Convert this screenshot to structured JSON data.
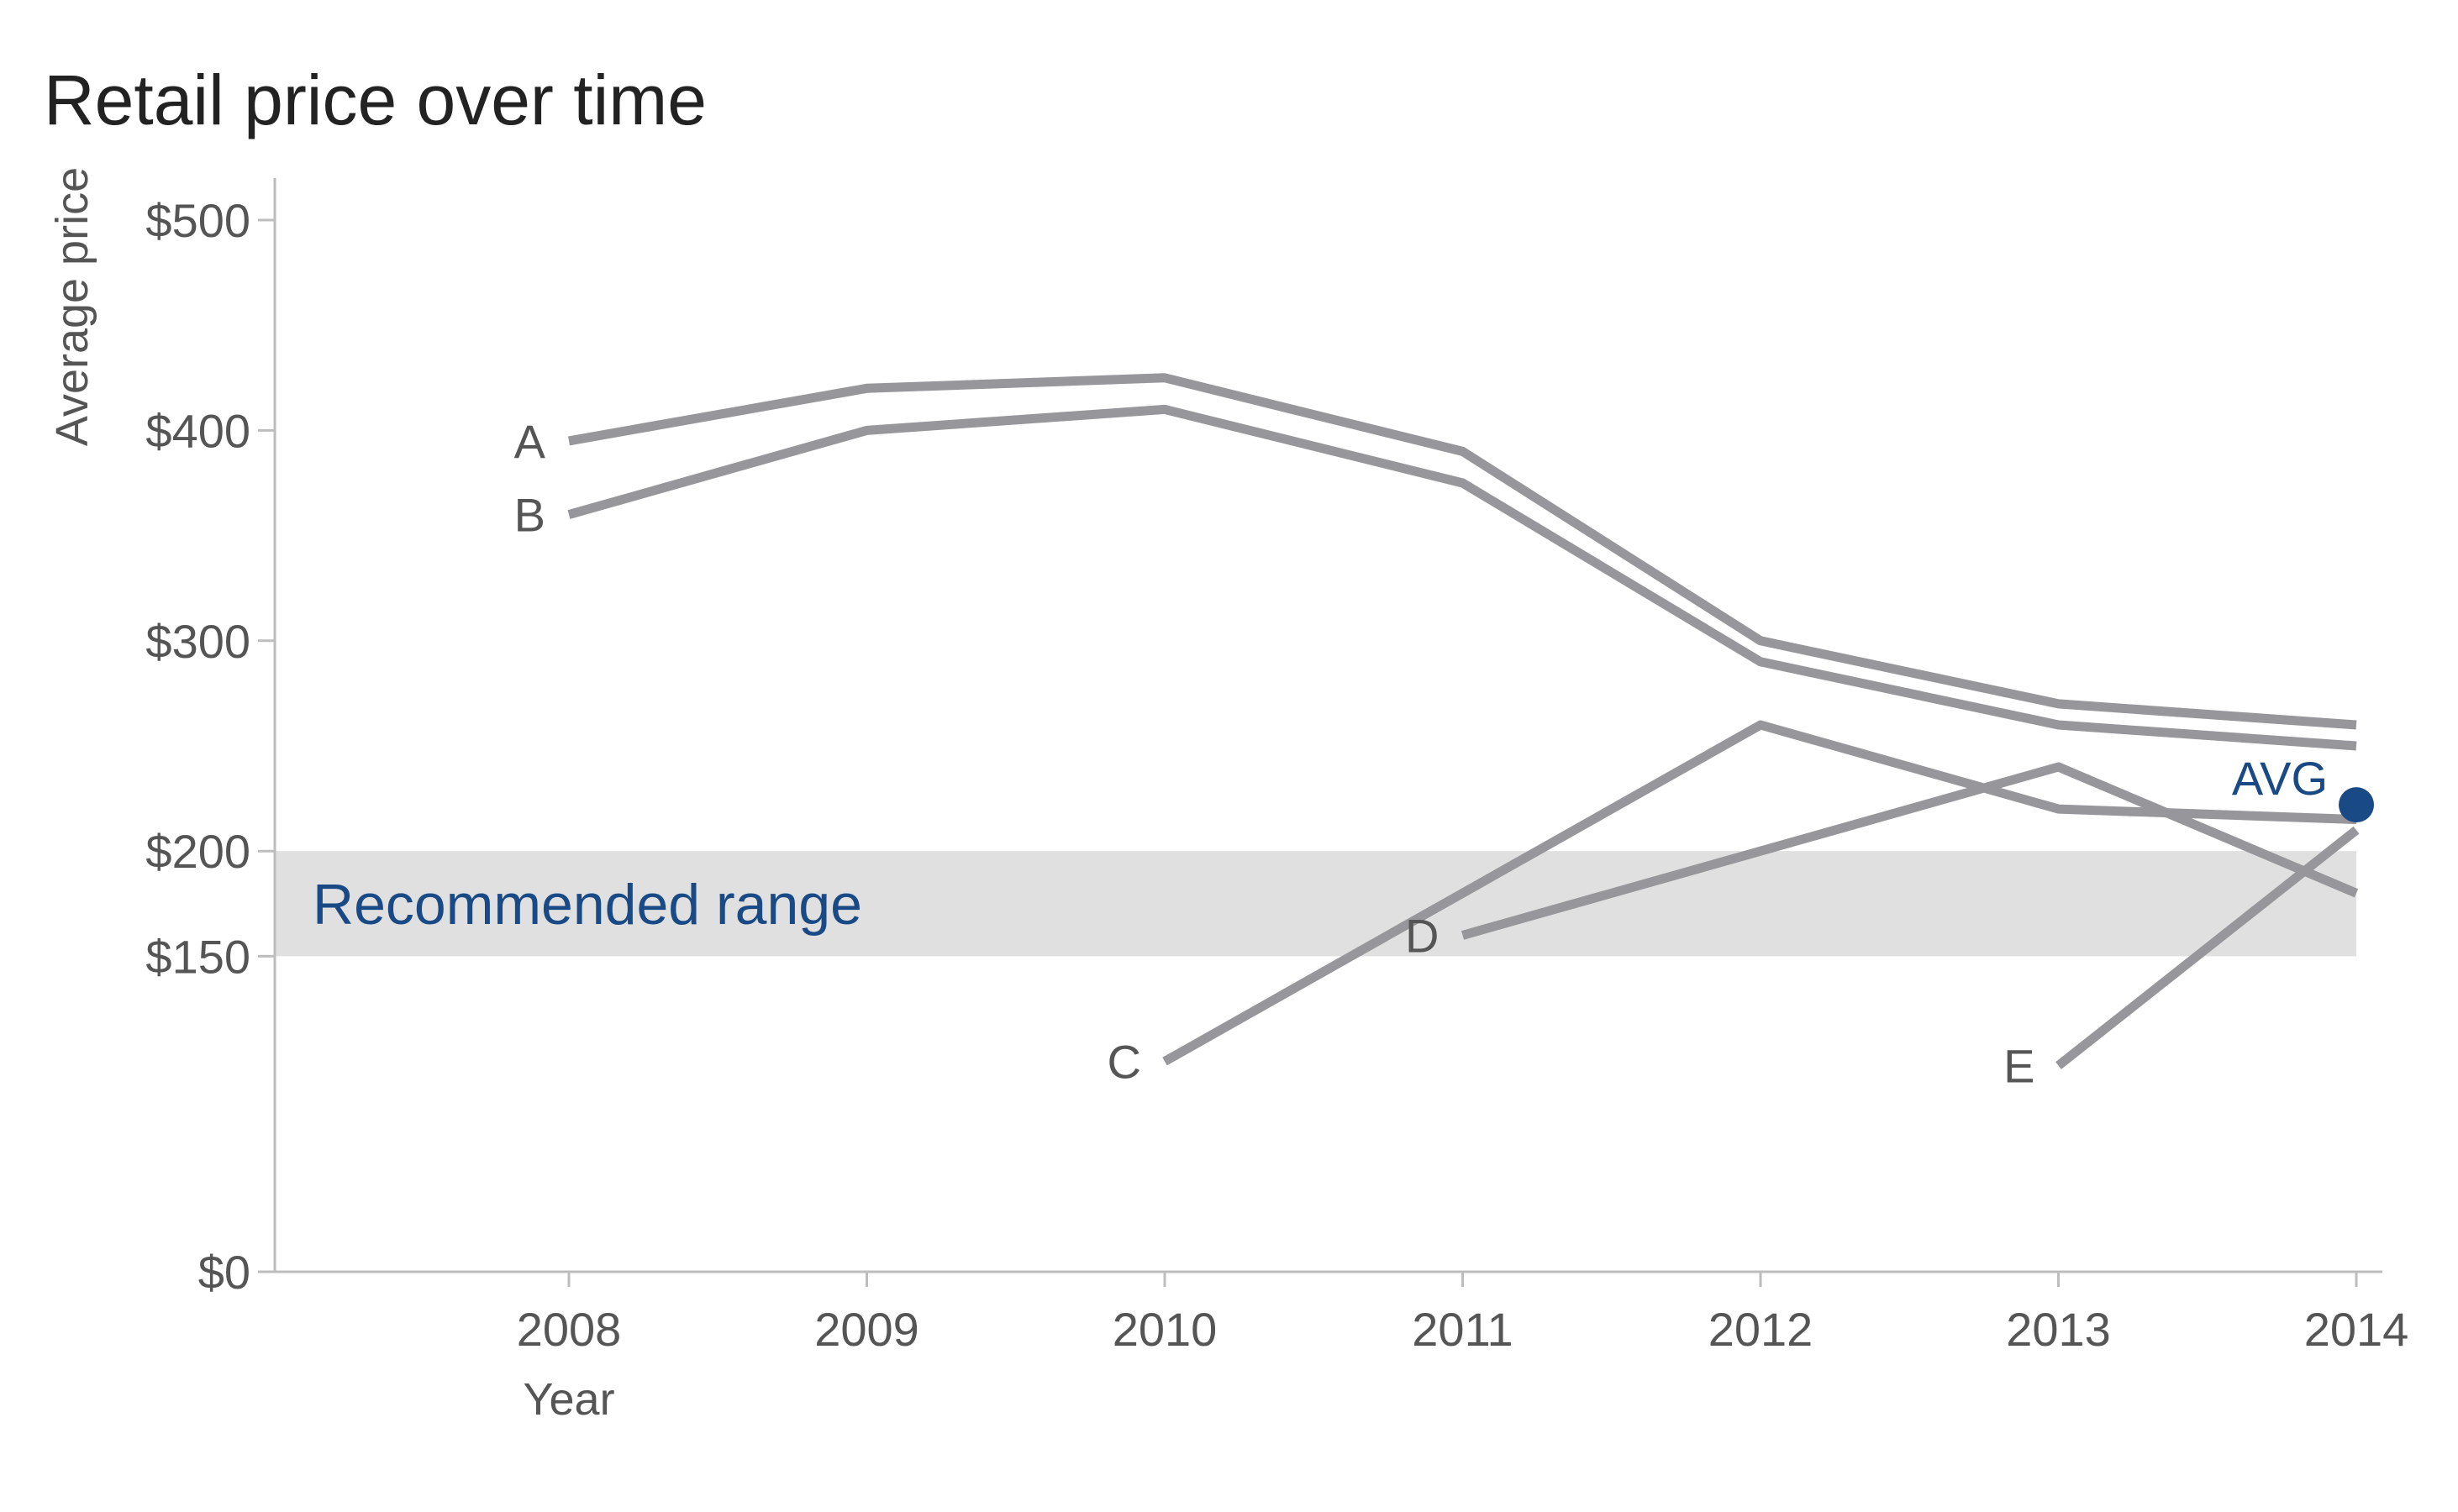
{
  "chart_data": {
    "type": "line",
    "title": "Retail price over time",
    "xlabel": "Year",
    "ylabel": "Average price",
    "x": [
      "2008",
      "2009",
      "2010",
      "2011",
      "2012",
      "2013",
      "2014"
    ],
    "y_ticks": [
      {
        "value": 0,
        "label": "$0"
      },
      {
        "value": 150,
        "label": "$150"
      },
      {
        "value": 200,
        "label": "$200"
      },
      {
        "value": 300,
        "label": "$300"
      },
      {
        "value": 400,
        "label": "$400"
      },
      {
        "value": 500,
        "label": "$500"
      }
    ],
    "ylim": [
      0,
      520
    ],
    "grid": false,
    "recommended_range": {
      "label": "Recommended range",
      "from": 150,
      "to": 200,
      "color": "#e0e0e0"
    },
    "series_color": "#97979b",
    "accent_color": "#1a4a85",
    "series": [
      {
        "name": "A",
        "values": [
          395,
          420,
          425,
          390,
          300,
          270,
          260
        ]
      },
      {
        "name": "B",
        "values": [
          360,
          400,
          410,
          375,
          290,
          260,
          250
        ]
      },
      {
        "name": "C",
        "values": [
          null,
          null,
          100,
          180,
          260,
          220,
          215
        ]
      },
      {
        "name": "D",
        "values": [
          null,
          null,
          null,
          160,
          200,
          240,
          180
        ]
      },
      {
        "name": "E",
        "values": [
          null,
          null,
          null,
          null,
          null,
          98,
          210
        ]
      }
    ],
    "average": {
      "name": "AVG",
      "x": "2014",
      "value": 222
    }
  }
}
